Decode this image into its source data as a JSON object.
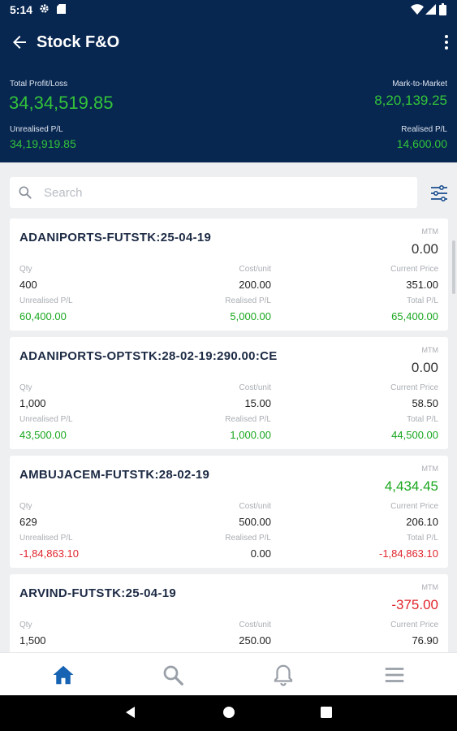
{
  "status_bar": {
    "time": "5:14"
  },
  "app_bar": {
    "title": "Stock F&O"
  },
  "summary": {
    "total_pl_label": "Total Profit/Loss",
    "total_pl_value": "34,34,519.85",
    "mtm_label": "Mark-to-Market",
    "mtm_value": "8,20,139.25",
    "unrealised_label": "Unrealised P/L",
    "unrealised_value": "34,19,919.85",
    "realised_label": "Realised P/L",
    "realised_value": "14,600.00"
  },
  "search": {
    "placeholder": "Search"
  },
  "labels": {
    "mtm": "MTM",
    "qty": "Qty",
    "cost": "Cost/unit",
    "current": "Current Price",
    "unrealised": "Unrealised P/L",
    "realised": "Realised P/L",
    "total": "Total P/L"
  },
  "positions": [
    {
      "name": "ADANIPORTS-FUTSTK:25-04-19",
      "mtm": "0.00",
      "qty": "400",
      "cost": "200.00",
      "current": "351.00",
      "unrealised": "60,400.00",
      "realised": "5,000.00",
      "total": "65,400.00"
    },
    {
      "name": "ADANIPORTS-OPTSTK:28-02-19:290.00:CE",
      "mtm": "0.00",
      "qty": "1,000",
      "cost": "15.00",
      "current": "58.50",
      "unrealised": "43,500.00",
      "realised": "1,000.00",
      "total": "44,500.00"
    },
    {
      "name": "AMBUJACEM-FUTSTK:28-02-19",
      "mtm": "4,434.45",
      "qty": "629",
      "cost": "500.00",
      "current": "206.10",
      "unrealised": "-1,84,863.10",
      "realised": "0.00",
      "total": "-1,84,863.10"
    },
    {
      "name": "ARVIND-FUTSTK:25-04-19",
      "mtm": "-375.00",
      "qty": "1,500",
      "cost": "250.00",
      "current": "76.90",
      "unrealised": "",
      "realised": "",
      "total": ""
    }
  ],
  "colors": {
    "header": "#072650",
    "profit": "#1aa71f",
    "loss": "#e0262d",
    "nav_active": "#1763b3",
    "nav_inactive": "#9aa0a8"
  },
  "bottom_nav": [
    "home-icon",
    "search-icon",
    "bell-icon",
    "menu-icon"
  ]
}
